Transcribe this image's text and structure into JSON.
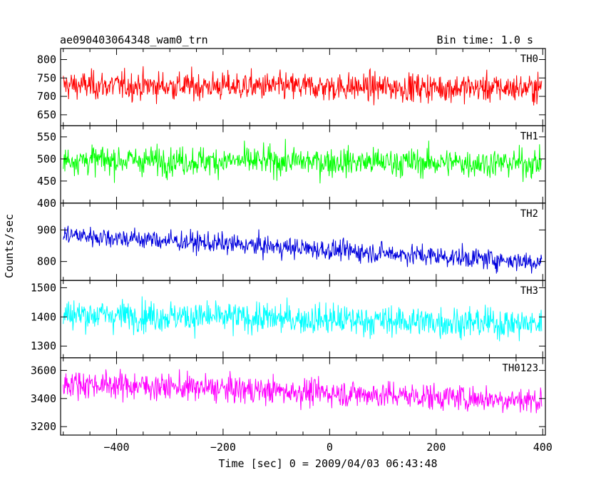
{
  "chart_data": {
    "type": "line",
    "title": "ae090403064348_wam0_trn",
    "subtitle": "Bin time: 1.0 s",
    "xlabel": "Time [sec] 0 = 2009/04/03 06:43:48",
    "ylabel": "Counts/sec",
    "xlim": [
      -505,
      405
    ],
    "x_ticks": [
      -400,
      -200,
      0,
      200,
      400
    ],
    "x_range": [
      -500,
      398
    ],
    "grid": false,
    "panels": [
      {
        "name": "TH0",
        "color": "#ff0000",
        "ylim": [
          620,
          830
        ],
        "y_ticks": [
          650,
          700,
          750,
          800
        ],
        "mean_start": 730,
        "mean_end": 722,
        "noise_sd": 32,
        "spread": 1.2
      },
      {
        "name": "TH1",
        "color": "#00ff00",
        "ylim": [
          400,
          575
        ],
        "y_ticks": [
          400,
          450,
          500,
          550
        ],
        "mean_start": 498,
        "mean_end": 490,
        "noise_sd": 27,
        "spread": 1.2
      },
      {
        "name": "TH2",
        "color": "#0000dd",
        "ylim": [
          740,
          985
        ],
        "y_ticks": [
          800,
          900
        ],
        "mean_start": 885,
        "mean_end": 798,
        "noise_sd": 27,
        "spread": 1.2
      },
      {
        "name": "TH3",
        "color": "#00ffff",
        "ylim": [
          1260,
          1525
        ],
        "y_ticks": [
          1300,
          1400,
          1500
        ],
        "mean_start": 1410,
        "mean_end": 1375,
        "noise_sd": 44,
        "spread": 1.2
      },
      {
        "name": "TH0123",
        "color": "#ff00ff",
        "ylim": [
          3140,
          3690
        ],
        "y_ticks": [
          3200,
          3400,
          3600
        ],
        "mean_start": 3510,
        "mean_end": 3385,
        "noise_sd": 80,
        "spread": 1.2
      }
    ]
  }
}
